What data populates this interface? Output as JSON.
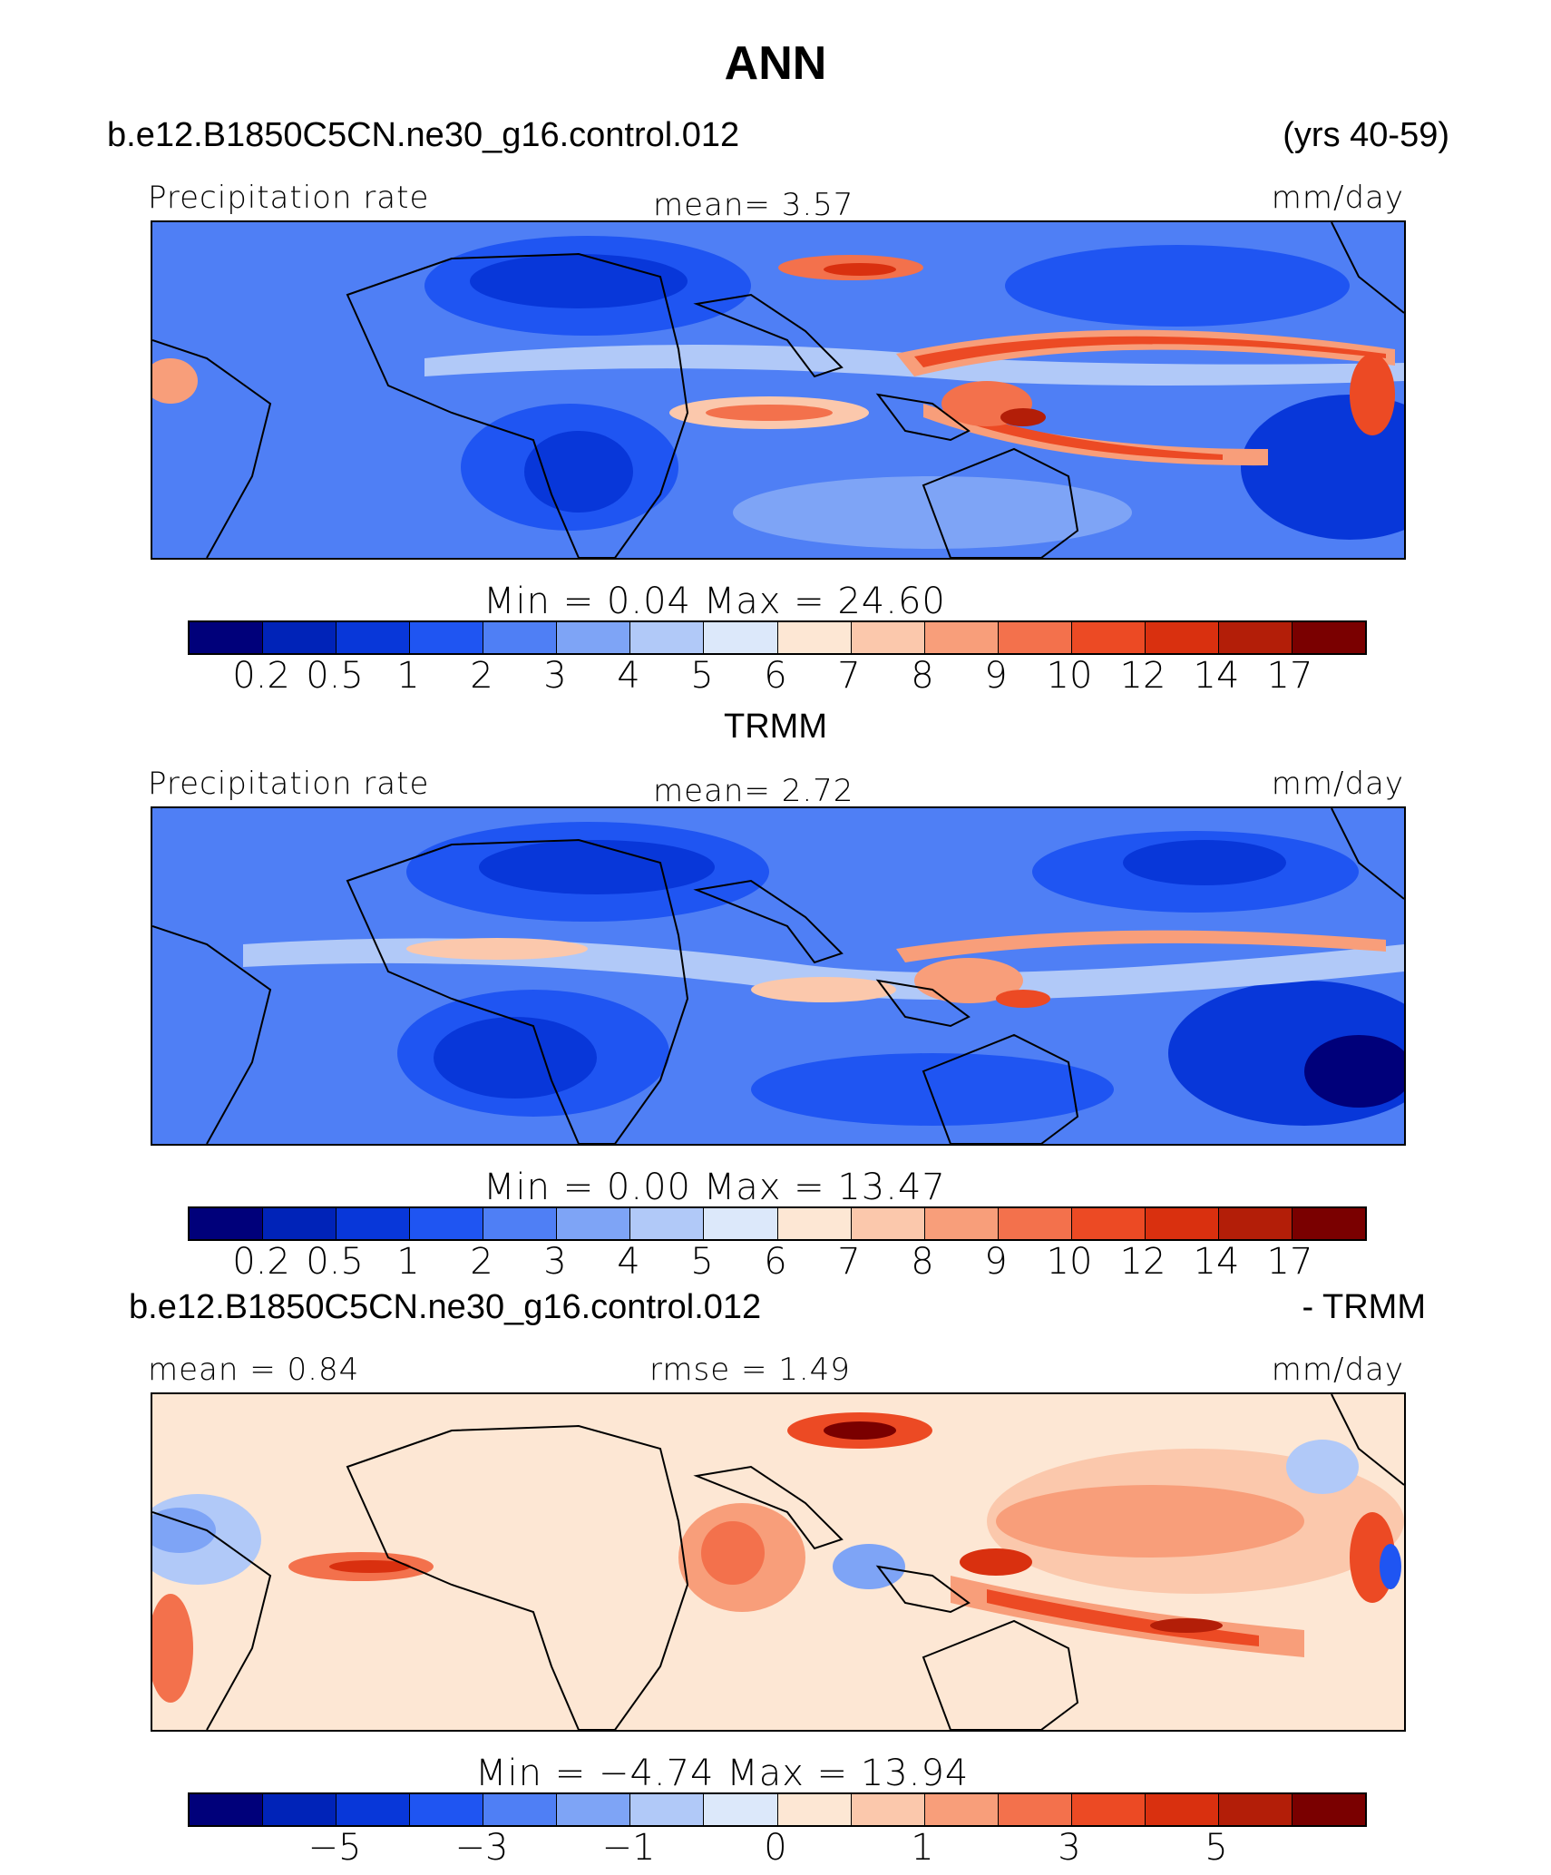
{
  "title": "ANN",
  "colors": [
    "#00007a",
    "#0023b8",
    "#0837d9",
    "#1f55f2",
    "#4f7ff5",
    "#7ea4f6",
    "#b1c9f8",
    "#dce8fa",
    "#fde7d4",
    "#fbc8ac",
    "#f89e7a",
    "#f3714c",
    "#ec4a24",
    "#d9300f",
    "#b31e08",
    "#7a0000"
  ],
  "panels": [
    {
      "case_left": "b.e12.B1850C5CN.ne30_g16.control.012",
      "case_right": "(yrs 40-59)",
      "label_left": "Precipitation rate",
      "label_center": "mean=    3.57",
      "label_right": "mm/day",
      "minmax": "Min  =     0.04  Max  =    24.60",
      "chart_data": {
        "type": "heatmap",
        "title": "ANN",
        "variable": "Precipitation rate",
        "units": "mm/day",
        "mean": 3.57,
        "min": 0.04,
        "max": 24.6,
        "contour_levels": [
          "0.2",
          "0.5",
          "1",
          "2",
          "3",
          "4",
          "5",
          "6",
          "7",
          "8",
          "9",
          "10",
          "12",
          "14",
          "17"
        ]
      }
    },
    {
      "case_left": "TRMM",
      "case_right": "",
      "label_left": "Precipitation rate",
      "label_center": "mean=    2.72",
      "label_right": "mm/day",
      "minmax": "Min  =     0.00  Max  =    13.47",
      "chart_data": {
        "type": "heatmap",
        "title": "TRMM",
        "variable": "Precipitation rate",
        "units": "mm/day",
        "mean": 2.72,
        "min": 0.0,
        "max": 13.47,
        "contour_levels": [
          "0.2",
          "0.5",
          "1",
          "2",
          "3",
          "4",
          "5",
          "6",
          "7",
          "8",
          "9",
          "10",
          "12",
          "14",
          "17"
        ]
      }
    },
    {
      "case_left": "b.e12.B1850C5CN.ne30_g16.control.012",
      "case_right": "- TRMM",
      "label_left": "mean  =    0.84",
      "label_center": "rmse  =    1.49",
      "label_right": "mm/day",
      "minmax": "Min  =   −4.74  Max  =    13.94",
      "chart_data": {
        "type": "heatmap",
        "variable": "difference",
        "units": "mm/day",
        "mean": 0.84,
        "rmse": 1.49,
        "min": -4.74,
        "max": 13.94,
        "contour_levels": [
          "−5",
          "−3",
          "−1",
          "0",
          "1",
          "3",
          "5"
        ]
      }
    }
  ]
}
